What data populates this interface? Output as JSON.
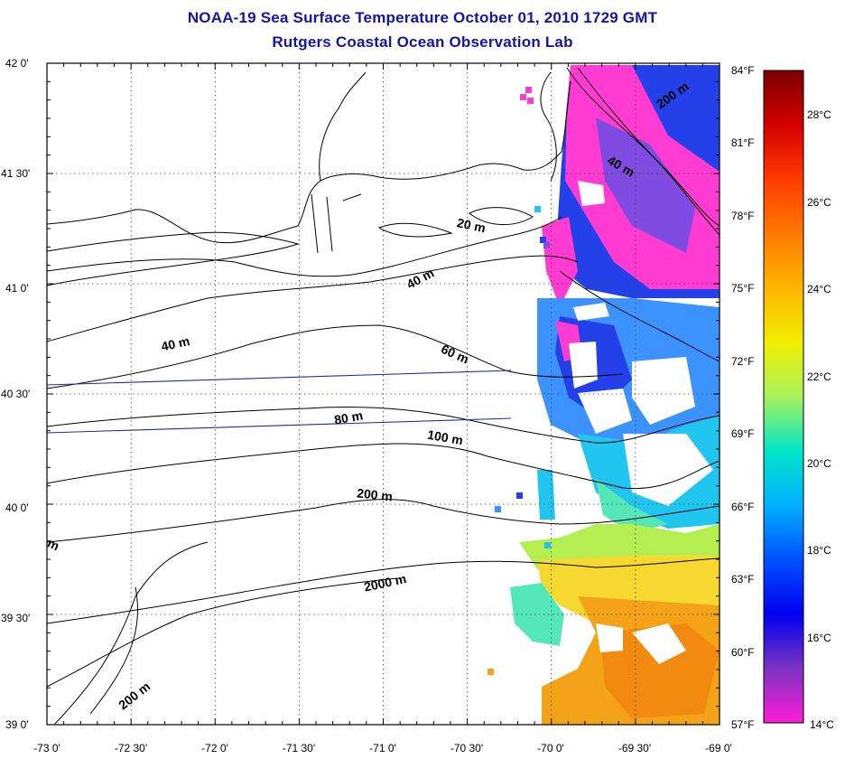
{
  "header": {
    "title": "NOAA-19 Sea Surface Temperature October 01, 2010 1729 GMT",
    "subtitle": "Rutgers Coastal Ocean Observation Lab"
  },
  "map": {
    "lat_labels": [
      "42 0'",
      "41 30'",
      "41 0'",
      "40 30'",
      "40 0'",
      "39 30'",
      "39 0'"
    ],
    "lon_labels": [
      "-73 0'",
      "-72 30'",
      "-72 0'",
      "-71 30'",
      "-71 0'",
      "-70 30'",
      "-70 0'",
      "-69 30'",
      "-69 0'"
    ],
    "fahrenheit_labels": [
      "84°F",
      "81°F",
      "78°F",
      "75°F",
      "72°F",
      "69°F",
      "66°F",
      "63°F",
      "60°F",
      "57°F"
    ],
    "depth_labels": [
      "200 m",
      "40 m",
      "20 m",
      "40 m",
      "40 m",
      "60 m",
      "80 m",
      "100 m",
      "200 m",
      "m",
      "2000 m",
      "200 m"
    ]
  },
  "colorbar": {
    "celsius_labels": [
      "28°C",
      "26°C",
      "24°C",
      "22°C",
      "20°C",
      "18°C",
      "16°C",
      "14°C"
    ],
    "colors": [
      "#7a0000",
      "#d40000",
      "#ff3a00",
      "#ff7a00",
      "#ffb400",
      "#f2ef00",
      "#a8f25c",
      "#00e6c8",
      "#00b0ff",
      "#0050ff",
      "#0000f0",
      "#7a33c0",
      "#ff1cd8"
    ]
  },
  "sst_colors": {
    "pink": "#ff3bd2",
    "purple": "#7f4be0",
    "blue": "#2440e8",
    "lightblue": "#3c92ff",
    "cyan": "#21c6f0",
    "aqua": "#54e8b8",
    "lime": "#b4ee50",
    "yellow": "#f6d830",
    "orange": "#f4a318",
    "darkorange": "#f28a10"
  }
}
